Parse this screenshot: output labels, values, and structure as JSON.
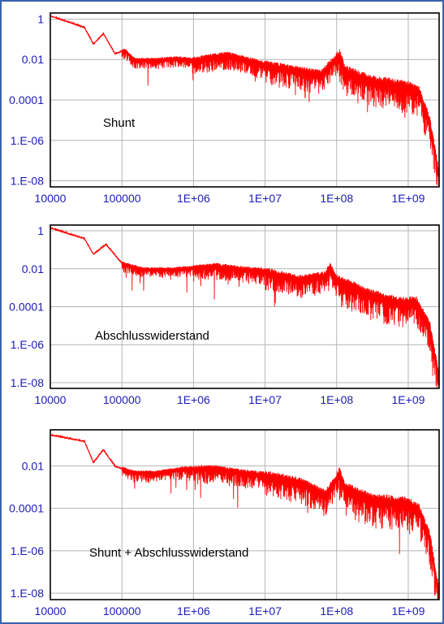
{
  "colors": {
    "frame_border": "#3a62ad",
    "tick_label": "#1c1cb8",
    "grid": "#b4b4b4",
    "series": "#ff0000",
    "annotation": "#000000",
    "plot_border": "#000000"
  },
  "chart_data": [
    {
      "type": "line",
      "xscale": "log",
      "yscale": "log",
      "xlim": [
        10000,
        2700000000
      ],
      "ylim": [
        5e-09,
        2
      ],
      "x_ticks": [
        "10000",
        "100000",
        "1E+06",
        "1E+07",
        "1E+08",
        "1E+09"
      ],
      "y_ticks": [
        "1",
        "0.01",
        "0.0001",
        "1.E-06",
        "1.E-08"
      ],
      "annotation": "Shunt",
      "grid": true,
      "legend": "none",
      "series": [
        {
          "color": "#ff0000",
          "points": [
            [
              10000,
              1.5
            ],
            [
              30000,
              0.4
            ],
            [
              40000,
              0.06
            ],
            [
              55000,
              0.2
            ],
            [
              80000,
              0.02
            ],
            [
              110000,
              0.03
            ],
            [
              150000,
              0.01
            ],
            [
              300000,
              0.01
            ],
            [
              600000,
              0.012
            ],
            [
              1000000,
              0.01
            ],
            [
              2000000,
              0.015
            ],
            [
              3000000,
              0.018
            ],
            [
              10000000,
              0.006
            ],
            [
              30000000,
              0.003
            ],
            [
              60000000,
              0.002
            ],
            [
              110000000,
              0.02
            ],
            [
              130000000,
              0.003
            ],
            [
              300000000,
              0.001
            ],
            [
              1000000000,
              0.0005
            ],
            [
              1400000000,
              0.0003
            ],
            [
              2000000000,
              1e-05
            ],
            [
              2700000000,
              2e-08
            ]
          ]
        }
      ]
    },
    {
      "type": "line",
      "xscale": "log",
      "yscale": "log",
      "xlim": [
        10000,
        2700000000
      ],
      "ylim": [
        5e-09,
        2
      ],
      "x_ticks": [
        "10000",
        "100000",
        "1E+06",
        "1E+07",
        "1E+08",
        "1E+09"
      ],
      "y_ticks": [
        "1",
        "0.01",
        "0.0001",
        "1.E-06",
        "1.E-08"
      ],
      "annotation": "Abschlusswiderstand",
      "grid": true,
      "legend": "none",
      "series": [
        {
          "color": "#ff0000",
          "points": [
            [
              10000,
              1.5
            ],
            [
              30000,
              0.4
            ],
            [
              40000,
              0.06
            ],
            [
              60000,
              0.2
            ],
            [
              100000,
              0.02
            ],
            [
              200000,
              0.01
            ],
            [
              500000,
              0.01
            ],
            [
              1000000,
              0.012
            ],
            [
              2000000,
              0.015
            ],
            [
              5000000,
              0.01
            ],
            [
              10000000,
              0.008
            ],
            [
              30000000,
              0.003
            ],
            [
              70000000,
              0.005
            ],
            [
              80000000,
              0.015
            ],
            [
              100000000,
              0.003
            ],
            [
              300000000,
              0.0005
            ],
            [
              700000000,
              0.0002
            ],
            [
              1300000000,
              0.0002
            ],
            [
              2000000000,
              1e-05
            ],
            [
              2700000000,
              2e-08
            ]
          ]
        }
      ]
    },
    {
      "type": "line",
      "xscale": "log",
      "yscale": "log",
      "xlim": [
        10000,
        2700000000
      ],
      "ylim": [
        5e-09,
        0.5
      ],
      "x_ticks": [
        "10000",
        "100000",
        "1E+06",
        "1E+07",
        "1E+08",
        "1E+09"
      ],
      "y_ticks": [
        "0.01",
        "0.0001",
        "1.E-06",
        "1.E-08"
      ],
      "annotation": "Shunt + Abschlusswiderstand",
      "grid": true,
      "legend": "none",
      "series": [
        {
          "color": "#ff0000",
          "points": [
            [
              10000,
              0.3
            ],
            [
              30000,
              0.15
            ],
            [
              40000,
              0.015
            ],
            [
              55000,
              0.06
            ],
            [
              80000,
              0.01
            ],
            [
              150000,
              0.005
            ],
            [
              300000,
              0.005
            ],
            [
              800000,
              0.008
            ],
            [
              2000000,
              0.008
            ],
            [
              5000000,
              0.005
            ],
            [
              10000000,
              0.004
            ],
            [
              30000000,
              0.002
            ],
            [
              70000000,
              0.0005
            ],
            [
              110000000,
              0.005
            ],
            [
              130000000,
              0.001
            ],
            [
              300000000,
              0.0003
            ],
            [
              1000000000,
              0.0002
            ],
            [
              1400000000,
              0.0001
            ],
            [
              2000000000,
              5e-06
            ],
            [
              2700000000,
              1e-08
            ]
          ]
        }
      ]
    }
  ]
}
